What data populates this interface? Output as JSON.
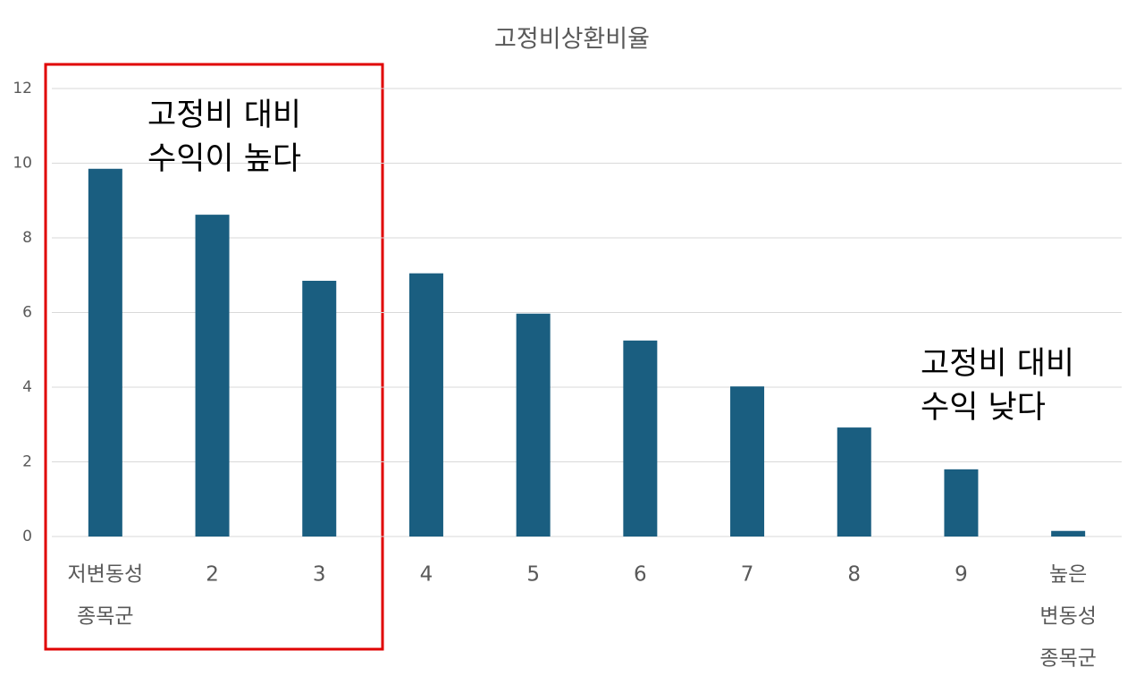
{
  "chart_data": {
    "type": "bar",
    "title": "고정비상환비율",
    "categories": [
      [
        "저변동성",
        "종목군"
      ],
      [
        "2"
      ],
      [
        "3"
      ],
      [
        "4"
      ],
      [
        "5"
      ],
      [
        "6"
      ],
      [
        "7"
      ],
      [
        "8"
      ],
      [
        "9"
      ],
      [
        "높은",
        "변동성",
        "종목군"
      ]
    ],
    "values": [
      9.85,
      8.62,
      6.85,
      7.05,
      5.97,
      5.25,
      4.02,
      2.92,
      1.8,
      0.15
    ],
    "color": "#1a5e80",
    "ylim": [
      0,
      12
    ],
    "yticks": [
      0,
      2,
      4,
      6,
      8,
      10,
      12
    ],
    "grid": true,
    "annotations": [
      [
        "고정비 대비",
        "수익이 높다"
      ],
      [
        "고정비 대비",
        "수익 낮다"
      ]
    ]
  }
}
